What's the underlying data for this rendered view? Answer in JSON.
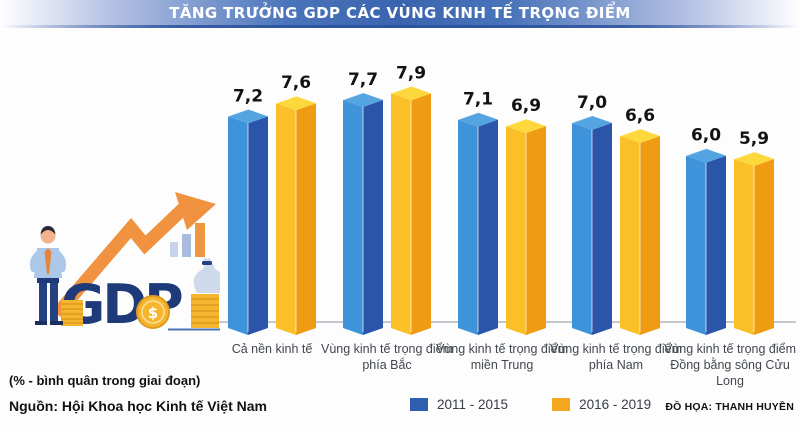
{
  "header": {
    "title": "TĂNG TRƯỞNG GDP CÁC VÙNG KINH TẾ TRỌNG ĐIỂM"
  },
  "chart_data": {
    "type": "bar",
    "title": "TĂNG TRƯỞNG GDP CÁC VÙNG KINH TẾ TRỌNG ĐIỂM",
    "categories": [
      "Cả nền kinh tế",
      "Vùng kinh tế trọng điểm phía Bắc",
      "Vùng kinh tế trọng điểm miền Trung",
      "Vùng kinh tế trọng điểm phía Nam",
      "Vùng kinh tế trọng điểm Đồng bằng sông Cửu Long"
    ],
    "series": [
      {
        "name": "2011 - 2015",
        "values": [
          7.2,
          7.7,
          7.1,
          7.0,
          6.0
        ],
        "color": "#2d5fae",
        "face_light": "#3f93db",
        "face_dark": "#2a55a8",
        "top_color": "#54a4e2"
      },
      {
        "name": "2016 - 2019",
        "values": [
          7.6,
          7.9,
          6.9,
          6.6,
          5.9
        ],
        "color": "#f5a81f",
        "face_light": "#fbbf28",
        "face_dark": "#ef9c13",
        "top_color": "#fdd83c"
      }
    ],
    "value_label_decimal_separator": ",",
    "ylabel": "%",
    "ylim": [
      0,
      8.5
    ],
    "grid": false,
    "legend_position": "bottom",
    "baseline_color": "#b2b6be",
    "value_label_color": "#131313"
  },
  "footer": {
    "unit_note": "(% - bình quân trong giai đoạn)",
    "source": "Nguồn: Hội Khoa học Kinh tế Việt Nam",
    "credit": "ĐỒ HỌA: THANH HUYỀN"
  },
  "illustration": {
    "gdp_label": "GDP",
    "coin_symbol": "$",
    "arrow_color": "#f0923f",
    "gdp_text_color": "#1f3a78",
    "coin_color": "#f5b62e"
  }
}
